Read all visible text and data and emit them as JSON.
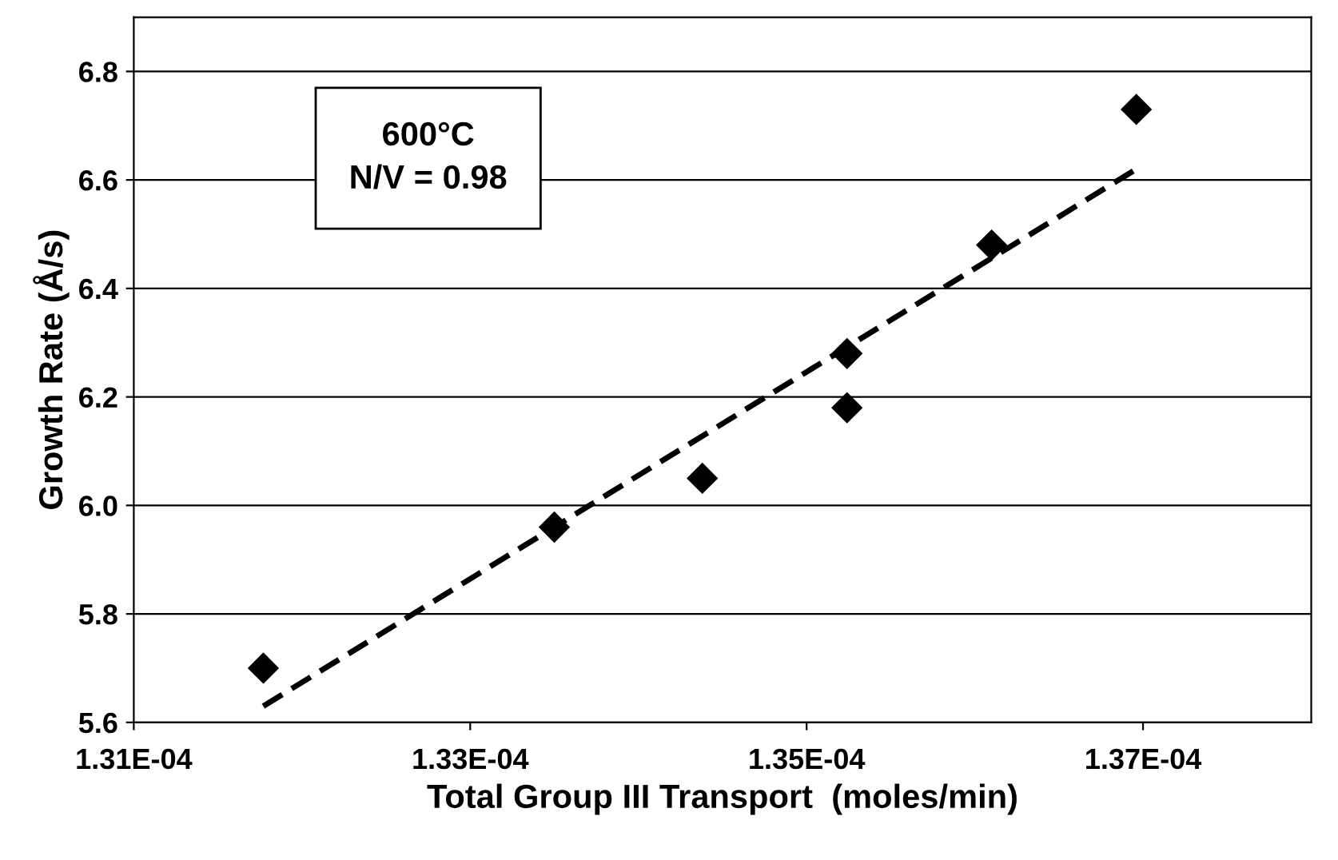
{
  "chart_data": {
    "type": "scatter",
    "xlabel": "Total Group III Transport  (moles/min)",
    "ylabel": "Growth Rate (Å/s)",
    "annotations": [
      "600°C\nN/V = 0.98"
    ],
    "xlim": [
      0.000131,
      0.000138
    ],
    "xticks": [
      {
        "value": 0.000131,
        "label": "1.31E-04"
      },
      {
        "value": 0.000133,
        "label": "1.33E-04"
      },
      {
        "value": 0.000135,
        "label": "1.35E-04"
      },
      {
        "value": 0.000137,
        "label": "1.37E-04"
      }
    ],
    "ylim": [
      5.6,
      6.9
    ],
    "yticks": [
      {
        "value": 5.6,
        "label": "5.6"
      },
      {
        "value": 5.8,
        "label": "5.8"
      },
      {
        "value": 6.0,
        "label": "6.0"
      },
      {
        "value": 6.2,
        "label": "6.2"
      },
      {
        "value": 6.4,
        "label": "6.4"
      },
      {
        "value": 6.6,
        "label": "6.6"
      },
      {
        "value": 6.8,
        "label": "6.8"
      }
    ],
    "grid": "y",
    "marker": "diamond",
    "series": [
      {
        "color": "#000000",
        "x": [
          0.00013177,
          0.0001335,
          0.00013438,
          0.00013524,
          0.00013524,
          0.0001361,
          0.00013696
        ],
        "values": [
          5.7,
          5.96,
          6.05,
          6.28,
          6.18,
          6.48,
          6.73
        ]
      },
      {
        "type": "line",
        "color": "#000000",
        "line_style": "dashed",
        "marker": "none",
        "x": [
          0.00013177,
          0.00013696
        ],
        "values": [
          5.63,
          6.62
        ]
      }
    ]
  }
}
